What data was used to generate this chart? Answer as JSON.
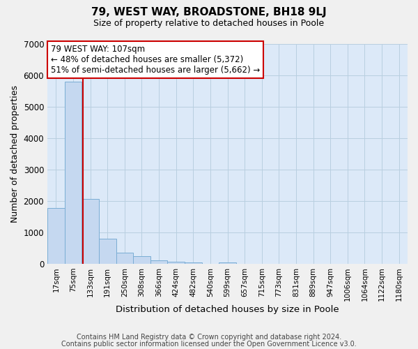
{
  "title": "79, WEST WAY, BROADSTONE, BH18 9LJ",
  "subtitle": "Size of property relative to detached houses in Poole",
  "xlabel": "Distribution of detached houses by size in Poole",
  "ylabel": "Number of detached properties",
  "bar_labels": [
    "17sqm",
    "75sqm",
    "133sqm",
    "191sqm",
    "250sqm",
    "308sqm",
    "366sqm",
    "424sqm",
    "482sqm",
    "540sqm",
    "599sqm",
    "657sqm",
    "715sqm",
    "773sqm",
    "831sqm",
    "889sqm",
    "947sqm",
    "1006sqm",
    "1064sqm",
    "1122sqm",
    "1180sqm"
  ],
  "bar_values": [
    1780,
    5780,
    2060,
    800,
    360,
    230,
    110,
    70,
    40,
    0,
    40,
    0,
    0,
    0,
    0,
    0,
    0,
    0,
    0,
    0,
    0
  ],
  "bar_color": "#c5d8f0",
  "bar_edge_color": "#7aadd4",
  "ylim": [
    0,
    7000
  ],
  "yticks": [
    0,
    1000,
    2000,
    3000,
    4000,
    5000,
    6000,
    7000
  ],
  "property_line_color": "#cc0000",
  "annotation_title": "79 WEST WAY: 107sqm",
  "annotation_line1": "← 48% of detached houses are smaller (5,372)",
  "annotation_line2": "51% of semi-detached houses are larger (5,662) →",
  "annotation_box_color": "#ffffff",
  "annotation_box_edge": "#cc0000",
  "footer1": "Contains HM Land Registry data © Crown copyright and database right 2024.",
  "footer2": "Contains public sector information licensed under the Open Government Licence v3.0.",
  "plot_background": "#dce9f8",
  "grid_color": "#b8cfe0"
}
